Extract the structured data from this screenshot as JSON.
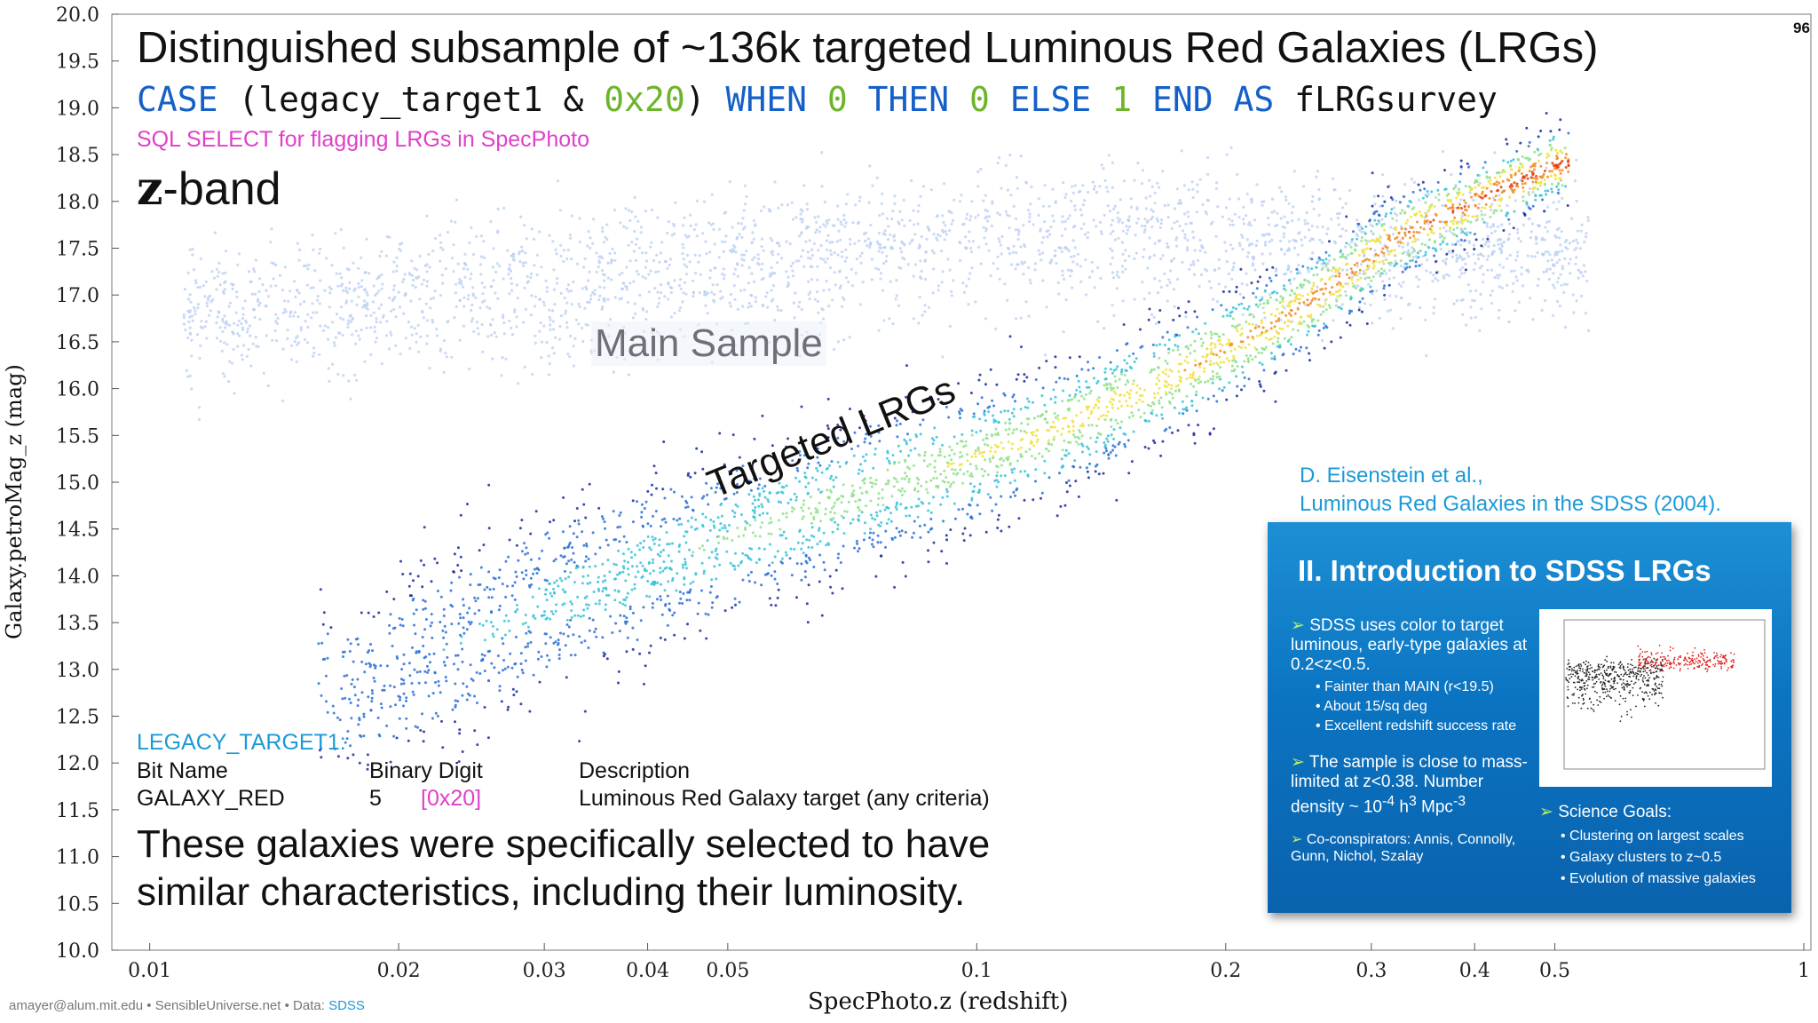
{
  "slide": {
    "title": "Distinguished subsample of ~136k targeted Luminous Red Galaxies (LRGs)",
    "sql": {
      "parts": [
        {
          "text": "CASE ",
          "color": "#1560c8"
        },
        {
          "text": "(legacy_target1 & ",
          "color": "#111111"
        },
        {
          "text": "0x20",
          "color": "#6db42a"
        },
        {
          "text": ") ",
          "color": "#111111"
        },
        {
          "text": "WHEN ",
          "color": "#1560c8"
        },
        {
          "text": "0 ",
          "color": "#6db42a"
        },
        {
          "text": "THEN ",
          "color": "#1560c8"
        },
        {
          "text": "0 ",
          "color": "#6db42a"
        },
        {
          "text": "ELSE ",
          "color": "#1560c8"
        },
        {
          "text": "1 ",
          "color": "#6db42a"
        },
        {
          "text": "END AS ",
          "color": "#1560c8"
        },
        {
          "text": "fLRGsurvey",
          "color": "#111111"
        }
      ]
    },
    "sql_caption": "SQL SELECT for flagging LRGs in SpecPhoto",
    "band_letter": "z",
    "band_suffix": "-band",
    "page_number": "96",
    "main_label": "Main Sample",
    "lrg_label": "Targeted LRGs",
    "legacy": {
      "title": "LEGACY_TARGET1:",
      "headers": [
        "Bit Name",
        "Binary Digit",
        "Description"
      ],
      "row": {
        "name": "GALAXY_RED",
        "digit": "5",
        "hex": "[0x20]",
        "description": "Luminous Red Galaxy target (any criteria)"
      }
    },
    "reference": {
      "line1": "D. Eisenstein et al.,",
      "line2": "Luminous Red Galaxies in the SDSS (2004)."
    },
    "statement": {
      "line1": "These galaxies were specifically selected to have",
      "line2": "similar characteristics, including their luminosity."
    },
    "footer": {
      "author": "amayer@alum.mit.edu • SensibleUniverse.net • Data: ",
      "source": "SDSS"
    },
    "panel": {
      "title": "II.  Introduction to SDSS LRGs",
      "bullet1": "SDSS uses color to target luminous, early-type galaxies at 0.2<z<0.5.",
      "sub1": [
        "Fainter than MAIN (r<19.5)",
        "About 15/sq deg",
        "Excellent redshift success rate"
      ],
      "bullet2_a": "The sample is close to mass-limited at z<0.38. Number density ~ 10",
      "bullet2_sup1": "-4",
      "bullet2_b": " h",
      "bullet2_sup2": "3",
      "bullet2_c": " Mpc",
      "bullet2_sup3": "-3",
      "bullet3": "Co-conspirators: Annis, Connolly, Gunn, Nichol, Szalay",
      "goals_title": "Science Goals:",
      "goals": [
        "Clustering on largest scales",
        "Galaxy clusters to z~0.5",
        "Evolution of massive galaxies"
      ]
    }
  },
  "chart_data": {
    "type": "scatter",
    "title": "",
    "xlabel": "SpecPhoto.z (redshift)",
    "ylabel": "Galaxy.petroMag_z (mag)",
    "xscale": "log",
    "xlim": [
      0.009,
      1.02
    ],
    "ylim": [
      10.0,
      20.0
    ],
    "x_ticks": [
      0.01,
      0.02,
      0.03,
      0.04,
      0.05,
      0.1,
      0.2,
      0.3,
      0.4,
      0.5,
      1
    ],
    "x_tick_labels": [
      "0.01",
      "0.02",
      "0.03",
      "0.04",
      "0.05",
      "0.1",
      "0.2",
      "0.3",
      "0.4",
      "0.5",
      "1"
    ],
    "y_ticks": [
      10.0,
      10.5,
      11.0,
      11.5,
      12.0,
      12.5,
      13.0,
      13.5,
      14.0,
      14.5,
      15.0,
      15.5,
      16.0,
      16.5,
      17.0,
      17.5,
      18.0,
      18.5,
      19.0,
      19.5,
      20.0
    ],
    "y_tick_labels": [
      "10.0",
      "10.5",
      "11.0",
      "11.5",
      "12.0",
      "12.5",
      "13.0",
      "13.5",
      "14.0",
      "14.5",
      "15.0",
      "15.5",
      "16.0",
      "16.5",
      "17.0",
      "17.5",
      "18.0",
      "18.5",
      "19.0",
      "19.5",
      "20.0"
    ],
    "colormap": [
      "#1a2a9a",
      "#2a6fd6",
      "#36c2d8",
      "#8fe08a",
      "#f0e040",
      "#f58a20",
      "#e0400a"
    ],
    "main_sample_color": "#b8cdf0",
    "density_ridge": {
      "x": [
        0.018,
        0.03,
        0.05,
        0.08,
        0.12,
        0.18,
        0.25,
        0.32,
        0.4,
        0.5
      ],
      "y": [
        12.8,
        13.7,
        14.4,
        15.0,
        15.5,
        16.2,
        16.9,
        17.6,
        18.0,
        18.4
      ]
    },
    "main_sample_cloud": {
      "x": [
        0.012,
        0.02,
        0.03,
        0.05,
        0.08,
        0.12,
        0.18,
        0.3
      ],
      "y": [
        16.8,
        17.0,
        17.1,
        17.3,
        17.5,
        17.6,
        17.6,
        17.5
      ]
    },
    "grid": false,
    "legend": "none"
  }
}
